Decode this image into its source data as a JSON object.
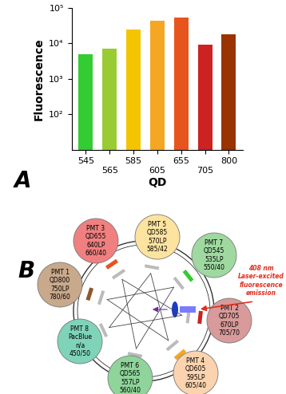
{
  "chart_data": {
    "type": "bar",
    "xlabel": "QD",
    "ylabel": "Fluorescence",
    "categories": [
      "545",
      "565",
      "585",
      "605",
      "655",
      "705",
      "800"
    ],
    "values": [
      5000,
      7000,
      25000,
      43000,
      54000,
      9000,
      18000
    ],
    "colors": [
      "#33cc33",
      "#99cc33",
      "#f5c400",
      "#f5a623",
      "#e8541e",
      "#cc2222",
      "#993300"
    ],
    "log": "y",
    "grid": false,
    "ylim": [
      10,
      100000
    ],
    "yticks": [
      {
        "value": 100,
        "label": "10²"
      },
      {
        "value": 1000,
        "label": "10³"
      },
      {
        "value": 10000,
        "label": "10⁴"
      },
      {
        "value": 100000,
        "label": "10⁵"
      }
    ]
  },
  "panel_labels": [
    "A",
    "B"
  ],
  "diagram": {
    "laser_text": "408 nm\nLaser-excited\nfluorescence\nemission",
    "detectors": [
      {
        "pmt": "PMT 5",
        "reagent": "QD585",
        "longpass": "570LP",
        "bandpass": "585/42",
        "color": "#fde3a0"
      },
      {
        "pmt": "PMT 7",
        "reagent": "QD545",
        "longpass": "535LP",
        "bandpass": "550/40",
        "color": "#9fd9a0"
      },
      {
        "pmt": "PMT 2",
        "reagent": "QD705",
        "longpass": "670LP",
        "bandpass": "705/70",
        "color": "#d89a9a"
      },
      {
        "pmt": "PMT 4",
        "reagent": "QD605",
        "longpass": "595LP",
        "bandpass": "605/40",
        "color": "#fbd3ae"
      },
      {
        "pmt": "PMT 6",
        "reagent": "QD565",
        "longpass": "557LP",
        "bandpass": "560/40",
        "color": "#8fd49a"
      },
      {
        "pmt": "PMT 8",
        "reagent": "PacBlue",
        "longpass": "n/a",
        "bandpass": "450/50",
        "color": "#7fd3b8"
      },
      {
        "pmt": "PMT 1",
        "reagent": "QD800",
        "longpass": "750LP",
        "bandpass": "780/60",
        "color": "#c9a98c"
      },
      {
        "pmt": "PMT 3",
        "reagent": "QD655",
        "longpass": "640LP",
        "bandpass": "660/40",
        "color": "#f08080"
      }
    ]
  }
}
